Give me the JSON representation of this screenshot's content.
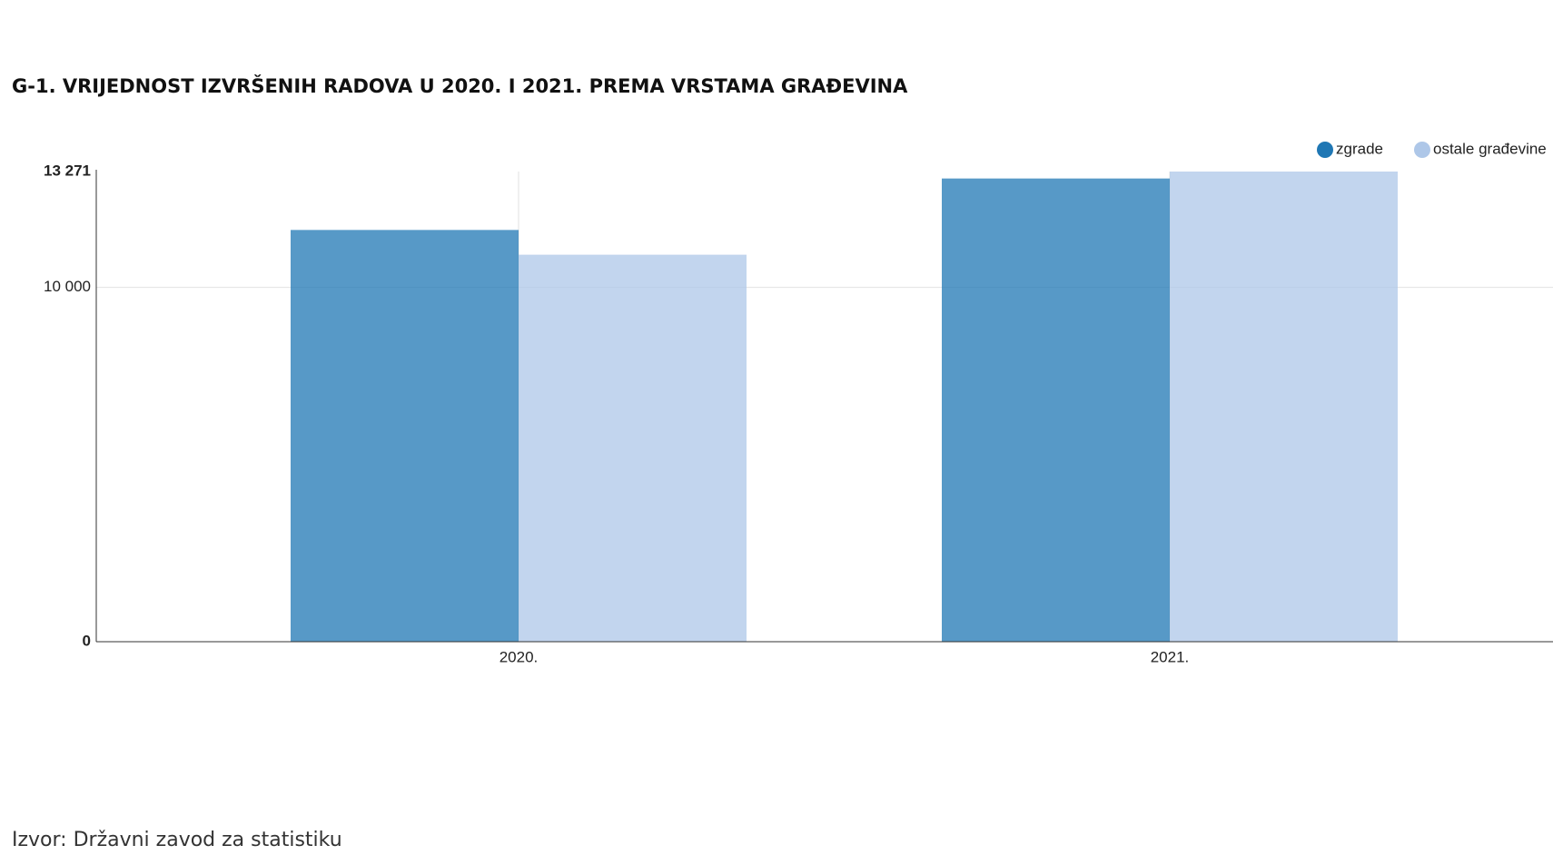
{
  "chart_data": {
    "type": "bar",
    "title": "G-1. VRIJEDNOST IZVRŠENIH RADOVA U 2020. I 2021. PREMA VRSTAMA GRAĐEVINA",
    "categories": [
      "2020.",
      "2021."
    ],
    "series": [
      {
        "name": "zgrade",
        "color": "#1f77b4",
        "values": [
          11622,
          13075
        ]
      },
      {
        "name": "ostale građevine",
        "color": "#aec7e8",
        "values": [
          10924,
          13271
        ]
      }
    ],
    "ylim": [
      0,
      13271
    ],
    "yticks": [
      0,
      {
        "value": 10000,
        "label": "10 000"
      },
      {
        "value": 13271,
        "label": "13 271"
      }
    ],
    "grid": true,
    "legend": "top-right",
    "source": "Izvor: Državni zavod za statistiku"
  }
}
